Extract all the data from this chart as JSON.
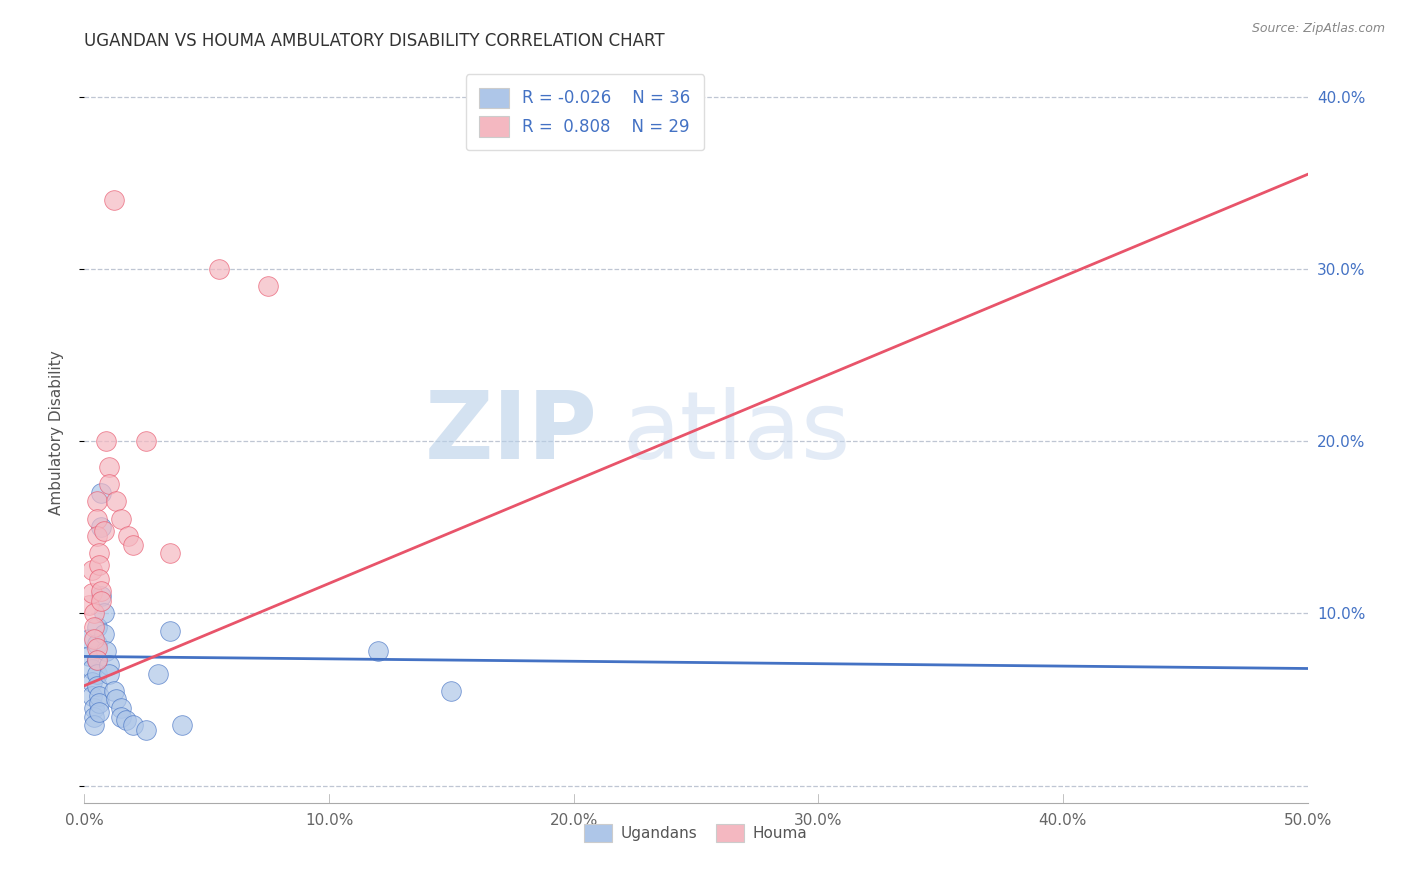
{
  "title": "UGANDAN VS HOUMA AMBULATORY DISABILITY CORRELATION CHART",
  "source": "Source: ZipAtlas.com",
  "ylabel": "Ambulatory Disability",
  "xlim": [
    0.0,
    0.5
  ],
  "ylim": [
    -0.01,
    0.42
  ],
  "xticks": [
    0.0,
    0.1,
    0.2,
    0.3,
    0.4,
    0.5
  ],
  "yticks_right": [
    0.0,
    0.1,
    0.2,
    0.3,
    0.4
  ],
  "ytick_labels_right": [
    "",
    "10.0%",
    "20.0%",
    "30.0%",
    "40.0%"
  ],
  "xtick_labels": [
    "0.0%",
    "10.0%",
    "20.0%",
    "30.0%",
    "40.0%",
    "50.0%"
  ],
  "legend_r1": "R = -0.026",
  "legend_n1": "N = 36",
  "legend_r2": "R =  0.808",
  "legend_n2": "N = 29",
  "ugandan_color": "#aec6e8",
  "houma_color": "#f4b8c1",
  "ugandan_line_color": "#4472c4",
  "houma_line_color": "#e8546a",
  "watermark_zip": "ZIP",
  "watermark_atlas": "atlas",
  "background_color": "#ffffff",
  "grid_color": "#b0b8c8",
  "ugandan_scatter": [
    [
      0.002,
      0.085
    ],
    [
      0.002,
      0.075
    ],
    [
      0.003,
      0.068
    ],
    [
      0.003,
      0.06
    ],
    [
      0.003,
      0.052
    ],
    [
      0.004,
      0.045
    ],
    [
      0.004,
      0.04
    ],
    [
      0.004,
      0.035
    ],
    [
      0.005,
      0.092
    ],
    [
      0.005,
      0.082
    ],
    [
      0.005,
      0.073
    ],
    [
      0.005,
      0.065
    ],
    [
      0.005,
      0.058
    ],
    [
      0.006,
      0.052
    ],
    [
      0.006,
      0.048
    ],
    [
      0.006,
      0.043
    ],
    [
      0.007,
      0.17
    ],
    [
      0.007,
      0.15
    ],
    [
      0.007,
      0.11
    ],
    [
      0.008,
      0.1
    ],
    [
      0.008,
      0.088
    ],
    [
      0.009,
      0.078
    ],
    [
      0.01,
      0.07
    ],
    [
      0.01,
      0.065
    ],
    [
      0.012,
      0.055
    ],
    [
      0.013,
      0.05
    ],
    [
      0.015,
      0.045
    ],
    [
      0.015,
      0.04
    ],
    [
      0.017,
      0.038
    ],
    [
      0.02,
      0.035
    ],
    [
      0.025,
      0.032
    ],
    [
      0.03,
      0.065
    ],
    [
      0.035,
      0.09
    ],
    [
      0.04,
      0.035
    ],
    [
      0.12,
      0.078
    ],
    [
      0.15,
      0.055
    ]
  ],
  "houma_scatter": [
    [
      0.002,
      0.105
    ],
    [
      0.003,
      0.125
    ],
    [
      0.003,
      0.112
    ],
    [
      0.004,
      0.1
    ],
    [
      0.004,
      0.092
    ],
    [
      0.004,
      0.085
    ],
    [
      0.005,
      0.08
    ],
    [
      0.005,
      0.073
    ],
    [
      0.005,
      0.165
    ],
    [
      0.005,
      0.155
    ],
    [
      0.005,
      0.145
    ],
    [
      0.006,
      0.135
    ],
    [
      0.006,
      0.128
    ],
    [
      0.006,
      0.12
    ],
    [
      0.007,
      0.113
    ],
    [
      0.007,
      0.107
    ],
    [
      0.008,
      0.148
    ],
    [
      0.009,
      0.2
    ],
    [
      0.01,
      0.185
    ],
    [
      0.01,
      0.175
    ],
    [
      0.012,
      0.34
    ],
    [
      0.013,
      0.165
    ],
    [
      0.015,
      0.155
    ],
    [
      0.018,
      0.145
    ],
    [
      0.02,
      0.14
    ],
    [
      0.025,
      0.2
    ],
    [
      0.035,
      0.135
    ],
    [
      0.055,
      0.3
    ],
    [
      0.075,
      0.29
    ]
  ],
  "ugandan_trendline_x": [
    0.0,
    0.5
  ],
  "ugandan_trendline_y": [
    0.075,
    0.068
  ],
  "houma_trendline_x": [
    0.0,
    0.5
  ],
  "houma_trendline_y": [
    0.058,
    0.355
  ]
}
